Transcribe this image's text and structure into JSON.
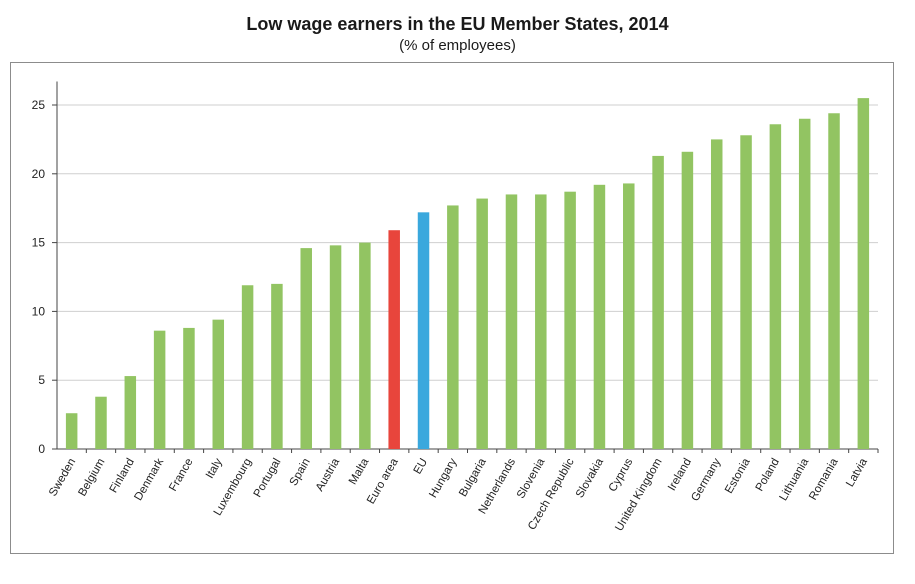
{
  "chart_data": {
    "type": "bar",
    "title": "Low wage earners in the EU Member States, 2014",
    "subtitle": "(% of employees)",
    "xlabel": "",
    "ylabel": "",
    "ylim": [
      0,
      27
    ],
    "yticks": [
      0,
      5,
      10,
      15,
      20,
      25
    ],
    "grid": true,
    "categories": [
      "Sweden",
      "Belgium",
      "Finland",
      "Denmark",
      "France",
      "Italy",
      "Luxembourg",
      "Portugal",
      "Spain",
      "Austria",
      "Malta",
      "Euro area",
      "EU",
      "Hungary",
      "Bulgaria",
      "Netherlands",
      "Slovenia",
      "Czech Republic",
      "Slovakia",
      "Cyprus",
      "United Kingdom",
      "Ireland",
      "Germany",
      "Estonia",
      "Poland",
      "Lithuania",
      "Romania",
      "Latvia"
    ],
    "values": [
      2.6,
      3.8,
      5.3,
      8.6,
      8.8,
      9.4,
      11.9,
      12.0,
      14.6,
      14.8,
      15.0,
      15.9,
      17.2,
      17.7,
      18.2,
      18.5,
      18.5,
      18.7,
      19.2,
      19.3,
      21.3,
      21.6,
      22.5,
      22.8,
      23.6,
      24.0,
      24.4,
      25.5
    ],
    "colors": {
      "default": "#92c462",
      "Euro area": "#e8453c",
      "EU": "#3aa8dd"
    }
  }
}
